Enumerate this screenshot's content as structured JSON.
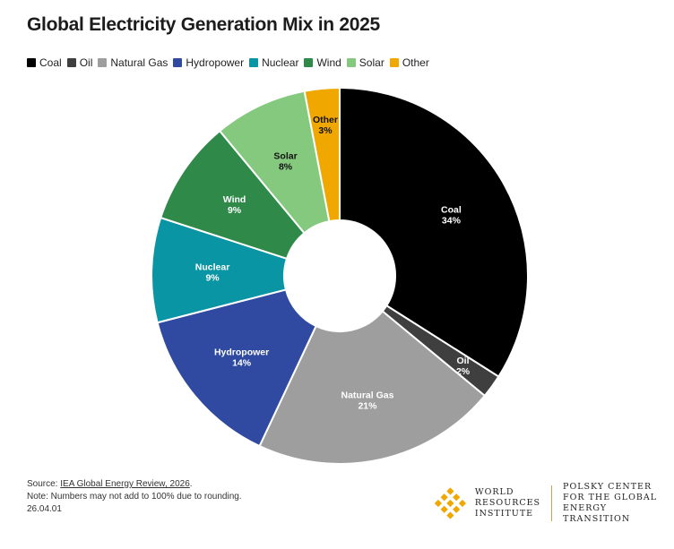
{
  "title": "Global Electricity Generation Mix in 2025",
  "legend": [
    {
      "label": "Coal",
      "color": "#000000"
    },
    {
      "label": "Oil",
      "color": "#3f3f3f"
    },
    {
      "label": "Natural Gas",
      "color": "#9e9e9e"
    },
    {
      "label": "Hydropower",
      "color": "#2f4aa0"
    },
    {
      "label": "Nuclear",
      "color": "#0a95a4"
    },
    {
      "label": "Wind",
      "color": "#2f8a4a"
    },
    {
      "label": "Solar",
      "color": "#85c97f"
    },
    {
      "label": "Other",
      "color": "#f0a800"
    }
  ],
  "chart_data": {
    "type": "pie",
    "donut": true,
    "title": "Global Electricity Generation Mix in 2025",
    "legend_position": "top-left",
    "slices": [
      {
        "name": "Coal",
        "value": 34,
        "label": "34%",
        "color": "#000000",
        "text_color": "#ffffff"
      },
      {
        "name": "Oil",
        "value": 2,
        "label": "2%",
        "color": "#3f3f3f",
        "text_color": "#ffffff"
      },
      {
        "name": "Natural Gas",
        "value": 21,
        "label": "21%",
        "color": "#9e9e9e",
        "text_color": "#ffffff"
      },
      {
        "name": "Hydropower",
        "value": 14,
        "label": "14%",
        "color": "#2f4aa0",
        "text_color": "#ffffff"
      },
      {
        "name": "Nuclear",
        "value": 9,
        "label": "9%",
        "color": "#0a95a4",
        "text_color": "#ffffff"
      },
      {
        "name": "Wind",
        "value": 9,
        "label": "9%",
        "color": "#2f8a4a",
        "text_color": "#ffffff"
      },
      {
        "name": "Solar",
        "value": 8,
        "label": "8%",
        "color": "#85c97f",
        "text_color": "#111111"
      },
      {
        "name": "Other",
        "value": 3,
        "label": "3%",
        "color": "#f0a800",
        "text_color": "#111111"
      }
    ]
  },
  "footer": {
    "source_prefix": "Source: ",
    "source_link": "IEA Global Energy Review, 2026",
    "source_suffix": ".",
    "note": "Note: Numbers may not add to 100% due to rounding.",
    "code": "26.04.01"
  },
  "logos": {
    "wri": [
      "WORLD",
      "RESOURCES",
      "INSTITUTE"
    ],
    "polsky": [
      "POLSKY CENTER",
      "FOR THE GLOBAL",
      "ENERGY TRANSITION"
    ]
  }
}
